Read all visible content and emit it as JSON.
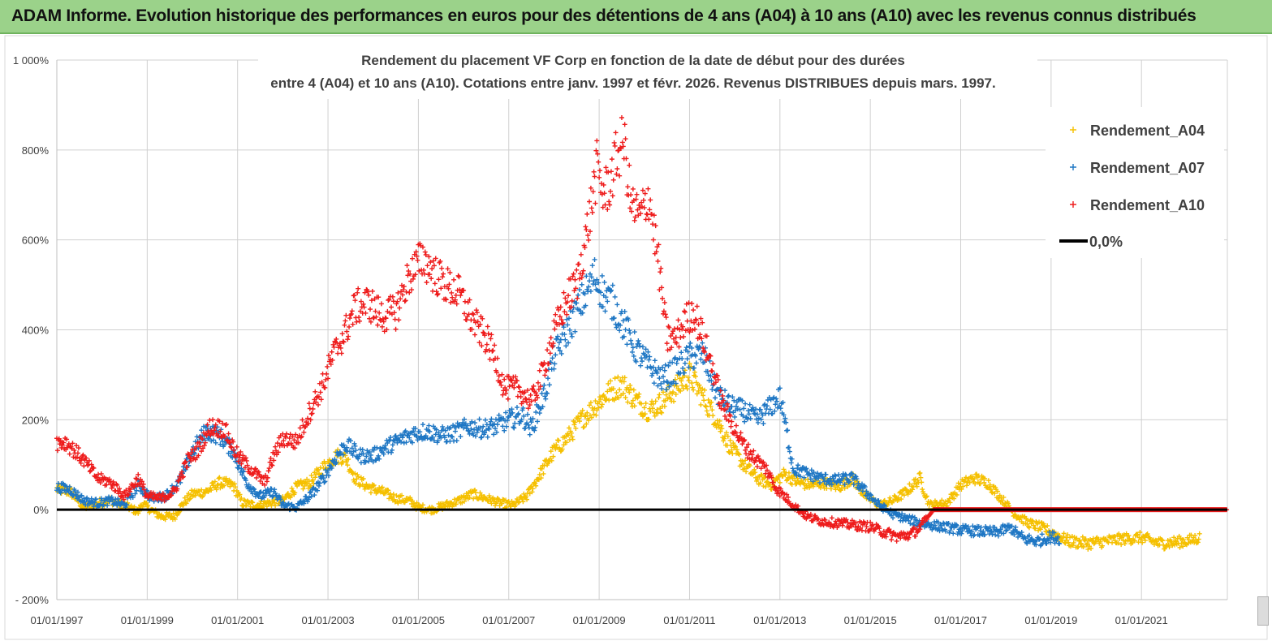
{
  "header": {
    "banner_title": "ADAM Informe. Evolution historique des performances en euros pour des détentions de 4 ans (A04) à 10 ans (A10) avec les revenus connus distribués"
  },
  "colors": {
    "banner": "#9bd28a",
    "A04": "#f5c000",
    "A07": "#1f77c4",
    "A10": "#ee1c1c",
    "zero": "#000000",
    "grid": "#d0d0d0"
  },
  "chart_data": {
    "type": "scatter",
    "title_line1": "Rendement du placement VF Corp en fonction de la date de début pour des durées",
    "title_line2": "entre 4 (A04) et 10 ans (A10).  Cotations entre janv. 1997 et févr. 2026. Revenus  DISTRIBUES depuis mars. 1997.",
    "xlabel": "",
    "ylabel": "",
    "x_start_year": 1997,
    "x_end_year": 2022.9,
    "ylim": [
      -200,
      1000
    ],
    "y_ticks": [
      -200,
      0,
      200,
      400,
      600,
      800,
      1000
    ],
    "y_tick_labels": [
      "- 200%",
      "0%",
      "200%",
      "400%",
      "600%",
      "800%",
      "1 000%"
    ],
    "x_tick_years": [
      1997,
      1999,
      2001,
      2003,
      2005,
      2007,
      2009,
      2011,
      2013,
      2015,
      2017,
      2019,
      2021
    ],
    "x_tick_labels": [
      "01/01/1997",
      "01/01/1999",
      "01/01/2001",
      "01/01/2003",
      "01/01/2005",
      "01/01/2007",
      "01/01/2009",
      "01/01/2011",
      "01/01/2013",
      "01/01/2015",
      "01/01/2017",
      "01/01/2019",
      "01/01/2021"
    ],
    "legend_position": "top-right",
    "series": [
      {
        "name": "Rendement_A04",
        "key": "A04",
        "points": [
          [
            1997.0,
            45
          ],
          [
            1997.3,
            40
          ],
          [
            1997.6,
            5
          ],
          [
            1997.9,
            15
          ],
          [
            1998.2,
            20
          ],
          [
            1998.5,
            10
          ],
          [
            1998.8,
            -5
          ],
          [
            1998.9,
            15
          ],
          [
            1999.0,
            5
          ],
          [
            1999.3,
            -15
          ],
          [
            1999.6,
            -15
          ],
          [
            1999.8,
            15
          ],
          [
            2000.0,
            35
          ],
          [
            2000.3,
            40
          ],
          [
            2000.6,
            60
          ],
          [
            2000.9,
            55
          ],
          [
            2001.1,
            15
          ],
          [
            2001.4,
            10
          ],
          [
            2001.7,
            15
          ],
          [
            2002.0,
            20
          ],
          [
            2002.3,
            50
          ],
          [
            2002.6,
            60
          ],
          [
            2002.9,
            95
          ],
          [
            2003.2,
            120
          ],
          [
            2003.4,
            115
          ],
          [
            2003.6,
            70
          ],
          [
            2003.9,
            50
          ],
          [
            2004.2,
            40
          ],
          [
            2004.5,
            25
          ],
          [
            2004.8,
            20
          ],
          [
            2005.0,
            5
          ],
          [
            2005.3,
            0
          ],
          [
            2005.6,
            10
          ],
          [
            2005.9,
            20
          ],
          [
            2006.2,
            35
          ],
          [
            2006.5,
            25
          ],
          [
            2006.8,
            15
          ],
          [
            2007.1,
            10
          ],
          [
            2007.4,
            30
          ],
          [
            2007.7,
            80
          ],
          [
            2008.0,
            130
          ],
          [
            2008.3,
            160
          ],
          [
            2008.6,
            200
          ],
          [
            2008.9,
            230
          ],
          [
            2009.2,
            260
          ],
          [
            2009.5,
            280
          ],
          [
            2009.8,
            245
          ],
          [
            2010.1,
            220
          ],
          [
            2010.4,
            240
          ],
          [
            2010.7,
            270
          ],
          [
            2011.0,
            300
          ],
          [
            2011.3,
            250
          ],
          [
            2011.6,
            200
          ],
          [
            2011.9,
            140
          ],
          [
            2012.2,
            100
          ],
          [
            2012.5,
            70
          ],
          [
            2012.8,
            55
          ],
          [
            2013.1,
            80
          ],
          [
            2013.4,
            60
          ],
          [
            2013.7,
            55
          ],
          [
            2014.0,
            60
          ],
          [
            2014.3,
            50
          ],
          [
            2014.6,
            70
          ],
          [
            2014.9,
            30
          ],
          [
            2015.2,
            10
          ],
          [
            2015.5,
            20
          ],
          [
            2015.8,
            40
          ],
          [
            2016.1,
            70
          ],
          [
            2016.3,
            10
          ],
          [
            2016.7,
            15
          ],
          [
            2017.0,
            55
          ],
          [
            2017.3,
            70
          ],
          [
            2017.6,
            60
          ],
          [
            2017.9,
            25
          ],
          [
            2018.2,
            -10
          ],
          [
            2018.5,
            -30
          ],
          [
            2018.8,
            -40
          ],
          [
            2019.1,
            -55
          ],
          [
            2019.4,
            -70
          ],
          [
            2019.8,
            -75
          ],
          [
            2020.2,
            -70
          ],
          [
            2020.6,
            -65
          ],
          [
            2021.0,
            -62
          ],
          [
            2021.4,
            -75
          ],
          [
            2021.8,
            -72
          ],
          [
            2022.1,
            -68
          ],
          [
            2022.3,
            -62
          ]
        ]
      },
      {
        "name": "Rendement_A07",
        "key": "A07",
        "points": [
          [
            1997.0,
            50
          ],
          [
            1997.3,
            45
          ],
          [
            1997.6,
            20
          ],
          [
            1997.9,
            15
          ],
          [
            1998.2,
            20
          ],
          [
            1998.5,
            10
          ],
          [
            1998.8,
            55
          ],
          [
            1999.1,
            25
          ],
          [
            1999.4,
            30
          ],
          [
            1999.7,
            60
          ],
          [
            2000.0,
            130
          ],
          [
            2000.3,
            175
          ],
          [
            2000.6,
            165
          ],
          [
            2000.9,
            130
          ],
          [
            2001.2,
            60
          ],
          [
            2001.5,
            30
          ],
          [
            2001.8,
            40
          ],
          [
            2002.0,
            10
          ],
          [
            2002.3,
            5
          ],
          [
            2002.6,
            30
          ],
          [
            2002.9,
            70
          ],
          [
            2003.2,
            120
          ],
          [
            2003.4,
            145
          ],
          [
            2003.7,
            120
          ],
          [
            2004.0,
            120
          ],
          [
            2004.3,
            140
          ],
          [
            2004.6,
            155
          ],
          [
            2004.9,
            170
          ],
          [
            2005.2,
            175
          ],
          [
            2005.5,
            165
          ],
          [
            2005.8,
            170
          ],
          [
            2006.1,
            185
          ],
          [
            2006.4,
            180
          ],
          [
            2006.7,
            185
          ],
          [
            2007.0,
            200
          ],
          [
            2007.3,
            210
          ],
          [
            2007.5,
            180
          ],
          [
            2007.8,
            260
          ],
          [
            2008.0,
            340
          ],
          [
            2008.3,
            400
          ],
          [
            2008.6,
            460
          ],
          [
            2008.9,
            520
          ],
          [
            2009.1,
            480
          ],
          [
            2009.3,
            460
          ],
          [
            2009.5,
            420
          ],
          [
            2009.8,
            360
          ],
          [
            2010.1,
            320
          ],
          [
            2010.4,
            290
          ],
          [
            2010.7,
            310
          ],
          [
            2011.0,
            340
          ],
          [
            2011.3,
            345
          ],
          [
            2011.6,
            260
          ],
          [
            2011.9,
            230
          ],
          [
            2012.2,
            220
          ],
          [
            2012.5,
            200
          ],
          [
            2012.8,
            230
          ],
          [
            2013.0,
            250
          ],
          [
            2013.1,
            200
          ],
          [
            2013.3,
            90
          ],
          [
            2013.6,
            80
          ],
          [
            2013.9,
            70
          ],
          [
            2014.2,
            65
          ],
          [
            2014.6,
            70
          ],
          [
            2014.9,
            40
          ],
          [
            2015.2,
            10
          ],
          [
            2015.5,
            -10
          ],
          [
            2015.8,
            -20
          ],
          [
            2016.1,
            -30
          ],
          [
            2016.4,
            -35
          ],
          [
            2016.7,
            -40
          ],
          [
            2017.0,
            -45
          ],
          [
            2017.4,
            -48
          ],
          [
            2017.8,
            -50
          ],
          [
            2018.1,
            -40
          ],
          [
            2018.4,
            -65
          ],
          [
            2018.7,
            -70
          ],
          [
            2019.0,
            -60
          ],
          [
            2019.2,
            -65
          ]
        ]
      },
      {
        "name": "Rendement_A10",
        "key": "A10",
        "points": [
          [
            1997.0,
            150
          ],
          [
            1997.2,
            150
          ],
          [
            1997.4,
            130
          ],
          [
            1997.6,
            110
          ],
          [
            1997.9,
            70
          ],
          [
            1998.2,
            60
          ],
          [
            1998.5,
            30
          ],
          [
            1998.8,
            70
          ],
          [
            1999.0,
            30
          ],
          [
            1999.3,
            25
          ],
          [
            1999.6,
            40
          ],
          [
            1999.9,
            110
          ],
          [
            2000.1,
            130
          ],
          [
            2000.4,
            185
          ],
          [
            2000.7,
            180
          ],
          [
            2001.0,
            120
          ],
          [
            2001.3,
            90
          ],
          [
            2001.6,
            60
          ],
          [
            2001.8,
            120
          ],
          [
            2002.0,
            160
          ],
          [
            2002.3,
            150
          ],
          [
            2002.6,
            220
          ],
          [
            2002.9,
            280
          ],
          [
            2003.1,
            340
          ],
          [
            2003.4,
            400
          ],
          [
            2003.6,
            450
          ],
          [
            2003.9,
            460
          ],
          [
            2004.2,
            430
          ],
          [
            2004.5,
            440
          ],
          [
            2004.8,
            520
          ],
          [
            2005.1,
            560
          ],
          [
            2005.3,
            530
          ],
          [
            2005.6,
            500
          ],
          [
            2005.9,
            480
          ],
          [
            2006.2,
            420
          ],
          [
            2006.5,
            380
          ],
          [
            2006.7,
            340
          ],
          [
            2006.9,
            270
          ],
          [
            2007.2,
            270
          ],
          [
            2007.5,
            240
          ],
          [
            2007.7,
            290
          ],
          [
            2007.9,
            360
          ],
          [
            2008.1,
            420
          ],
          [
            2008.3,
            470
          ],
          [
            2008.5,
            500
          ],
          [
            2008.7,
            600
          ],
          [
            2008.8,
            660
          ],
          [
            2008.95,
            760
          ],
          [
            2009.1,
            700
          ],
          [
            2009.25,
            730
          ],
          [
            2009.4,
            790
          ],
          [
            2009.55,
            820
          ],
          [
            2009.7,
            680
          ],
          [
            2009.9,
            650
          ],
          [
            2010.1,
            700
          ],
          [
            2010.3,
            560
          ],
          [
            2010.5,
            380
          ],
          [
            2010.7,
            380
          ],
          [
            2010.9,
            420
          ],
          [
            2011.1,
            440
          ],
          [
            2011.3,
            380
          ],
          [
            2011.5,
            320
          ],
          [
            2011.7,
            240
          ],
          [
            2011.9,
            200
          ],
          [
            2012.1,
            160
          ],
          [
            2012.3,
            130
          ],
          [
            2012.5,
            110
          ],
          [
            2012.7,
            90
          ],
          [
            2012.9,
            50
          ],
          [
            2013.1,
            30
          ],
          [
            2013.3,
            10
          ],
          [
            2013.6,
            -15
          ],
          [
            2013.9,
            -25
          ],
          [
            2014.3,
            -30
          ],
          [
            2014.7,
            -35
          ],
          [
            2015.0,
            -38
          ],
          [
            2015.3,
            -50
          ],
          [
            2015.6,
            -60
          ],
          [
            2015.9,
            -55
          ],
          [
            2016.1,
            -40
          ],
          [
            2016.4,
            0
          ],
          [
            2017.0,
            0
          ],
          [
            2018.0,
            0
          ],
          [
            2019.0,
            0
          ],
          [
            2020.0,
            0
          ],
          [
            2021.0,
            0
          ],
          [
            2022.0,
            0
          ],
          [
            2022.9,
            0
          ]
        ]
      },
      {
        "name": "0,0%",
        "key": "zero",
        "points": [
          [
            1997.0,
            0
          ],
          [
            2022.9,
            0
          ]
        ]
      }
    ]
  }
}
